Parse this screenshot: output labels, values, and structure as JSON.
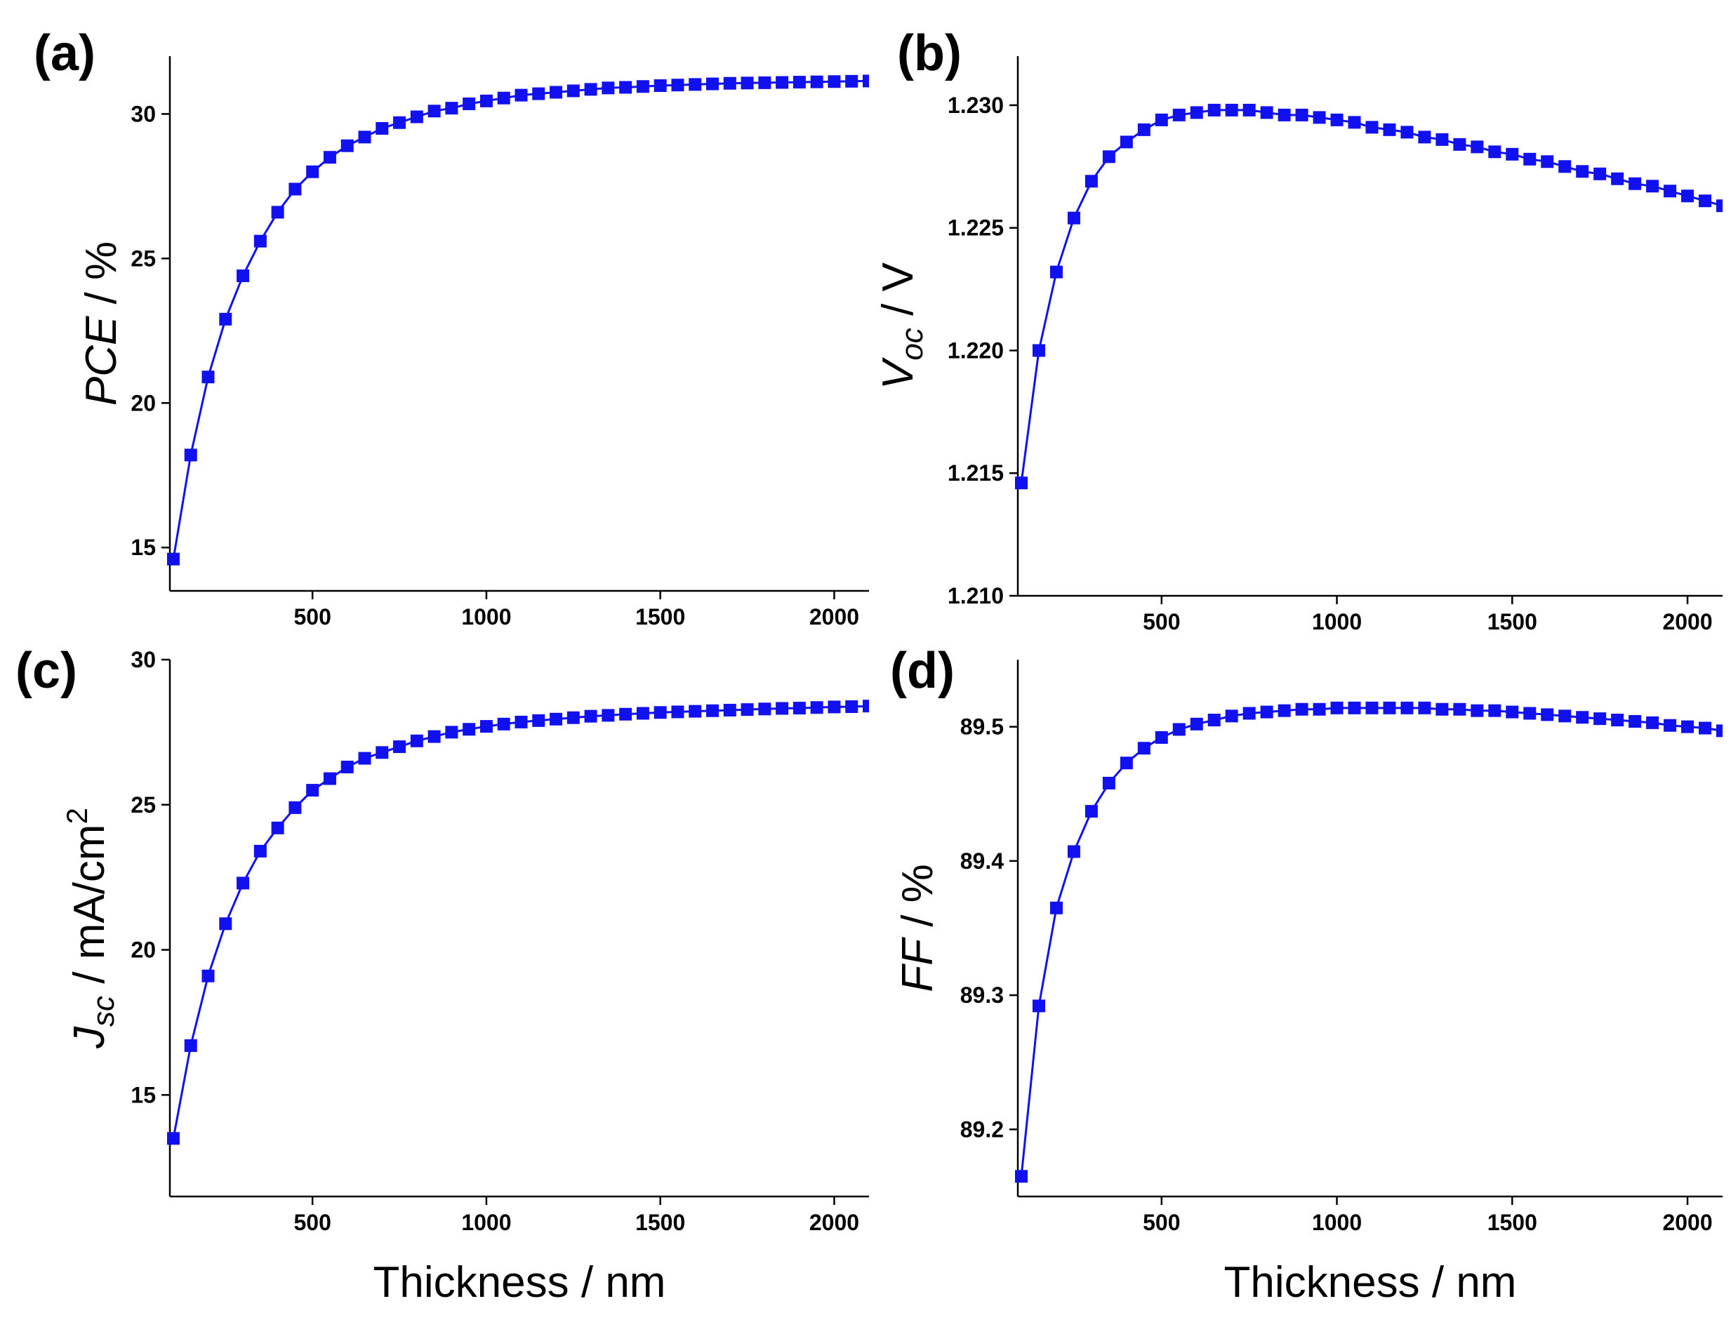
{
  "chart_data": [
    {
      "type": "line",
      "panel": "(a)",
      "ylabel_main": "PCE",
      "ylabel_unit": " / %",
      "xlabel": "",
      "xlim": [
        90,
        2100
      ],
      "ylim": [
        13.5,
        32
      ],
      "xticks": [
        500,
        1000,
        1500,
        2000
      ],
      "yticks": [
        15,
        20,
        25,
        30
      ],
      "ytick_labels": [
        "15",
        "20",
        "25",
        "30"
      ],
      "xtick_labels": [
        "500",
        "1000",
        "1500",
        "2000"
      ],
      "x": [
        100,
        150,
        200,
        250,
        300,
        350,
        400,
        450,
        500,
        550,
        600,
        650,
        700,
        750,
        800,
        850,
        900,
        950,
        1000,
        1050,
        1100,
        1150,
        1200,
        1250,
        1300,
        1350,
        1400,
        1450,
        1500,
        1550,
        1600,
        1650,
        1700,
        1750,
        1800,
        1850,
        1900,
        1950,
        2000,
        2050,
        2100
      ],
      "y": [
        14.6,
        18.2,
        20.9,
        22.9,
        24.4,
        25.6,
        26.6,
        27.4,
        28.0,
        28.5,
        28.9,
        29.2,
        29.5,
        29.7,
        29.9,
        30.1,
        30.2,
        30.35,
        30.45,
        30.55,
        30.65,
        30.7,
        30.75,
        30.8,
        30.85,
        30.9,
        30.92,
        30.95,
        30.98,
        31.0,
        31.02,
        31.04,
        31.06,
        31.07,
        31.08,
        31.09,
        31.1,
        31.11,
        31.12,
        31.13,
        31.14
      ]
    },
    {
      "type": "line",
      "panel": "(b)",
      "ylabel_main": "V",
      "ylabel_sub": "oc",
      "ylabel_unit": " / V",
      "xlabel": "",
      "xlim": [
        90,
        2100
      ],
      "ylim": [
        1.21,
        1.232
      ],
      "xticks": [
        500,
        1000,
        1500,
        2000
      ],
      "yticks": [
        1.21,
        1.215,
        1.22,
        1.225,
        1.23
      ],
      "ytick_labels": [
        "1.210",
        "1.215",
        "1.220",
        "1.225",
        "1.230"
      ],
      "xtick_labels": [
        "500",
        "1000",
        "1500",
        "2000"
      ],
      "x": [
        100,
        150,
        200,
        250,
        300,
        350,
        400,
        450,
        500,
        550,
        600,
        650,
        700,
        750,
        800,
        850,
        900,
        950,
        1000,
        1050,
        1100,
        1150,
        1200,
        1250,
        1300,
        1350,
        1400,
        1450,
        1500,
        1550,
        1600,
        1650,
        1700,
        1750,
        1800,
        1850,
        1900,
        1950,
        2000,
        2050,
        2100
      ],
      "y": [
        1.2146,
        1.22,
        1.2232,
        1.2254,
        1.2269,
        1.2279,
        1.2285,
        1.229,
        1.2294,
        1.2296,
        1.2297,
        1.2298,
        1.2298,
        1.2298,
        1.2297,
        1.2296,
        1.2296,
        1.2295,
        1.2294,
        1.2293,
        1.2291,
        1.229,
        1.2289,
        1.2287,
        1.2286,
        1.2284,
        1.2283,
        1.2281,
        1.228,
        1.2278,
        1.2277,
        1.2275,
        1.2273,
        1.2272,
        1.227,
        1.2268,
        1.2267,
        1.2265,
        1.2263,
        1.2261,
        1.2259
      ]
    },
    {
      "type": "line",
      "panel": "(c)",
      "ylabel_main": "J",
      "ylabel_sub": "sc",
      "ylabel_unit": " / mA/cm",
      "ylabel_sup": "2",
      "xlabel": "Thickness / nm",
      "xlim": [
        90,
        2100
      ],
      "ylim": [
        11.5,
        30
      ],
      "xticks": [
        500,
        1000,
        1500,
        2000
      ],
      "yticks": [
        15,
        20,
        25,
        30
      ],
      "ytick_labels": [
        "15",
        "20",
        "25",
        "30"
      ],
      "xtick_labels": [
        "500",
        "1000",
        "1500",
        "2000"
      ],
      "x": [
        100,
        150,
        200,
        250,
        300,
        350,
        400,
        450,
        500,
        550,
        600,
        650,
        700,
        750,
        800,
        850,
        900,
        950,
        1000,
        1050,
        1100,
        1150,
        1200,
        1250,
        1300,
        1350,
        1400,
        1450,
        1500,
        1550,
        1600,
        1650,
        1700,
        1750,
        1800,
        1850,
        1900,
        1950,
        2000,
        2050,
        2100
      ],
      "y": [
        13.5,
        16.7,
        19.1,
        20.9,
        22.3,
        23.4,
        24.2,
        24.9,
        25.5,
        25.9,
        26.3,
        26.6,
        26.8,
        27.0,
        27.2,
        27.35,
        27.5,
        27.6,
        27.7,
        27.78,
        27.85,
        27.9,
        27.95,
        28.0,
        28.05,
        28.08,
        28.12,
        28.15,
        28.18,
        28.2,
        28.22,
        28.24,
        28.26,
        28.28,
        28.3,
        28.32,
        28.33,
        28.35,
        28.37,
        28.38,
        28.4
      ]
    },
    {
      "type": "line",
      "panel": "(d)",
      "ylabel_main": "FF",
      "ylabel_unit": " / %",
      "xlabel": "Thickness / nm",
      "xlim": [
        90,
        2100
      ],
      "ylim": [
        89.15,
        89.55
      ],
      "xticks": [
        500,
        1000,
        1500,
        2000
      ],
      "yticks": [
        89.2,
        89.3,
        89.4,
        89.5
      ],
      "ytick_labels": [
        "89.2",
        "89.3",
        "89.4",
        "89.5"
      ],
      "xtick_labels": [
        "500",
        "1000",
        "1500",
        "2000"
      ],
      "x": [
        100,
        150,
        200,
        250,
        300,
        350,
        400,
        450,
        500,
        550,
        600,
        650,
        700,
        750,
        800,
        850,
        900,
        950,
        1000,
        1050,
        1100,
        1150,
        1200,
        1250,
        1300,
        1350,
        1400,
        1450,
        1500,
        1550,
        1600,
        1650,
        1700,
        1750,
        1800,
        1850,
        1900,
        1950,
        2000,
        2050,
        2100
      ],
      "y": [
        89.165,
        89.292,
        89.365,
        89.407,
        89.437,
        89.458,
        89.473,
        89.484,
        89.492,
        89.498,
        89.502,
        89.505,
        89.508,
        89.51,
        89.511,
        89.512,
        89.513,
        89.513,
        89.514,
        89.514,
        89.514,
        89.514,
        89.514,
        89.514,
        89.513,
        89.513,
        89.512,
        89.512,
        89.511,
        89.51,
        89.509,
        89.508,
        89.507,
        89.506,
        89.505,
        89.504,
        89.503,
        89.501,
        89.5,
        89.499,
        89.497
      ]
    }
  ]
}
